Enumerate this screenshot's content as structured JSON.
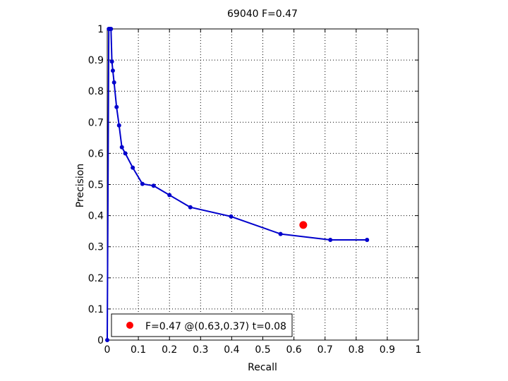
{
  "chart_data": {
    "type": "line",
    "title": "69040 F=0.47",
    "xlabel": "Recall",
    "ylabel": "Precision",
    "xlim": [
      0,
      1
    ],
    "ylim": [
      0,
      1
    ],
    "xticks": [
      "0",
      "0.1",
      "0.2",
      "0.3",
      "0.4",
      "0.5",
      "0.6",
      "0.7",
      "0.8",
      "0.9",
      "1"
    ],
    "yticks": [
      "0",
      "0.1",
      "0.2",
      "0.3",
      "0.4",
      "0.5",
      "0.6",
      "0.7",
      "0.8",
      "0.9",
      "1"
    ],
    "grid": true,
    "legend_position": "bottom-left",
    "series": [
      {
        "color": "#0000cc",
        "x": [
          0.0,
          0.005,
          0.008,
          0.012,
          0.015,
          0.018,
          0.022,
          0.03,
          0.038,
          0.047,
          0.058,
          0.082,
          0.113,
          0.149,
          0.2,
          0.267,
          0.398,
          0.557,
          0.717,
          0.835
        ],
        "y": [
          0.0,
          1.0,
          1.0,
          1.0,
          0.895,
          0.866,
          0.828,
          0.749,
          0.69,
          0.62,
          0.6,
          0.554,
          0.502,
          0.496,
          0.466,
          0.427,
          0.397,
          0.341,
          0.322,
          0.322
        ]
      }
    ],
    "best_point": {
      "x": 0.63,
      "y": 0.37,
      "color": "#ff0000"
    },
    "legend": {
      "label": "F=0.47 @(0.63,0.37) t=0.08"
    }
  }
}
